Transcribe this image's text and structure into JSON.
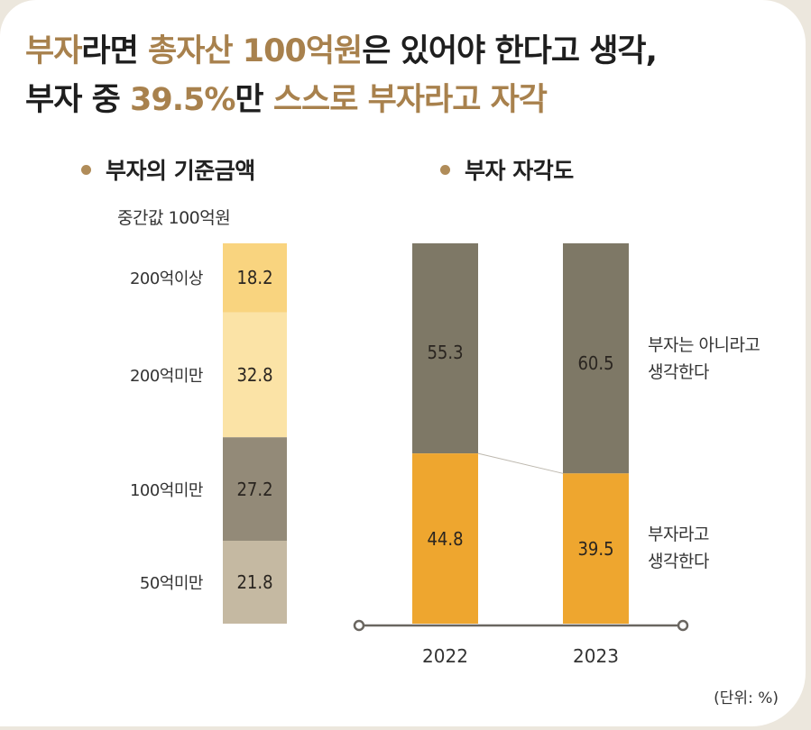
{
  "headline": {
    "line1": [
      {
        "text": "부자",
        "accent": true
      },
      {
        "text": "라면 ",
        "accent": false
      },
      {
        "text": "총자산 100억원",
        "accent": true
      },
      {
        "text": "은 있어야 한다고 생각,",
        "accent": false
      }
    ],
    "line2": [
      {
        "text": "부자 중 ",
        "accent": false
      },
      {
        "text": "39.5%",
        "accent": true
      },
      {
        "text": "만 ",
        "accent": false
      },
      {
        "text": "스스로 부자라고 자각",
        "accent": true
      }
    ]
  },
  "colors": {
    "accent": "#A8814D",
    "orange": "#EEA62F",
    "dark_grey": "#7E7866",
    "light_gold": "#F9D47F",
    "pale_gold": "#FBE3A6",
    "taupe": "#938A78",
    "light_taupe": "#C5B9A2"
  },
  "chart_data": [
    {
      "type": "bar",
      "stacked": true,
      "title": "부자의 기준금액",
      "subtitle": "중간값 100억원",
      "categories": [
        "200억이상",
        "200억미만",
        "100억미만",
        "50억미만"
      ],
      "values": [
        18.2,
        32.8,
        27.2,
        21.8
      ],
      "segment_colors": [
        "#F9D47F",
        "#FBE3A6",
        "#938A78",
        "#C5B9A2"
      ],
      "unit": "%"
    },
    {
      "type": "bar",
      "stacked": true,
      "title": "부자 자각도",
      "categories": [
        "2022",
        "2023"
      ],
      "series": [
        {
          "name": "부자는 아니라고 생각한다",
          "label_lines": [
            "부자는 아니라고",
            "생각한다"
          ],
          "values": [
            55.3,
            60.5
          ],
          "color": "#7E7866"
        },
        {
          "name": "부자라고 생각한다",
          "label_lines": [
            "부자라고",
            "생각한다"
          ],
          "values": [
            44.8,
            39.5
          ],
          "color": "#EEA62F"
        }
      ],
      "ylim": [
        0,
        100
      ],
      "unit": "%"
    }
  ],
  "unit_note": "(단위: %)"
}
